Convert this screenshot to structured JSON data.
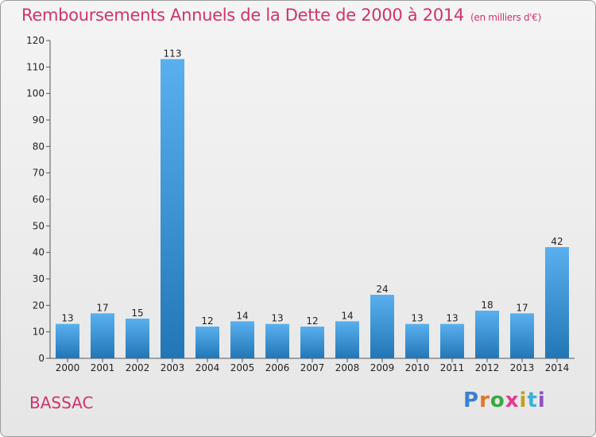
{
  "title": "Remboursements Annuels de la Dette de 2000 à 2014",
  "subtitle": "(en milliers d'€)",
  "town": "BASSAC",
  "logo": [
    "P",
    "r",
    "o",
    "x",
    "i",
    "t",
    "i"
  ],
  "colors": {
    "title": "#d2326e",
    "bar_top": "#5ab0ee",
    "bar_bottom": "#2276b6",
    "logo": [
      "#3b7fd0",
      "#e0752c",
      "#38a844",
      "#e33a8f",
      "#c0a020",
      "#3bb0d8",
      "#8c52c4"
    ]
  },
  "chart_data": {
    "type": "bar",
    "categories": [
      "2000",
      "2001",
      "2002",
      "2003",
      "2004",
      "2005",
      "2006",
      "2007",
      "2008",
      "2009",
      "2010",
      "2011",
      "2012",
      "2013",
      "2014"
    ],
    "values": [
      13,
      17,
      15,
      113,
      12,
      14,
      13,
      12,
      14,
      24,
      13,
      13,
      18,
      17,
      42
    ],
    "ylim": [
      0,
      120
    ],
    "yticks": [
      0,
      10,
      20,
      30,
      40,
      50,
      60,
      70,
      80,
      90,
      100,
      110,
      120
    ],
    "grid": false,
    "legend": "none"
  }
}
